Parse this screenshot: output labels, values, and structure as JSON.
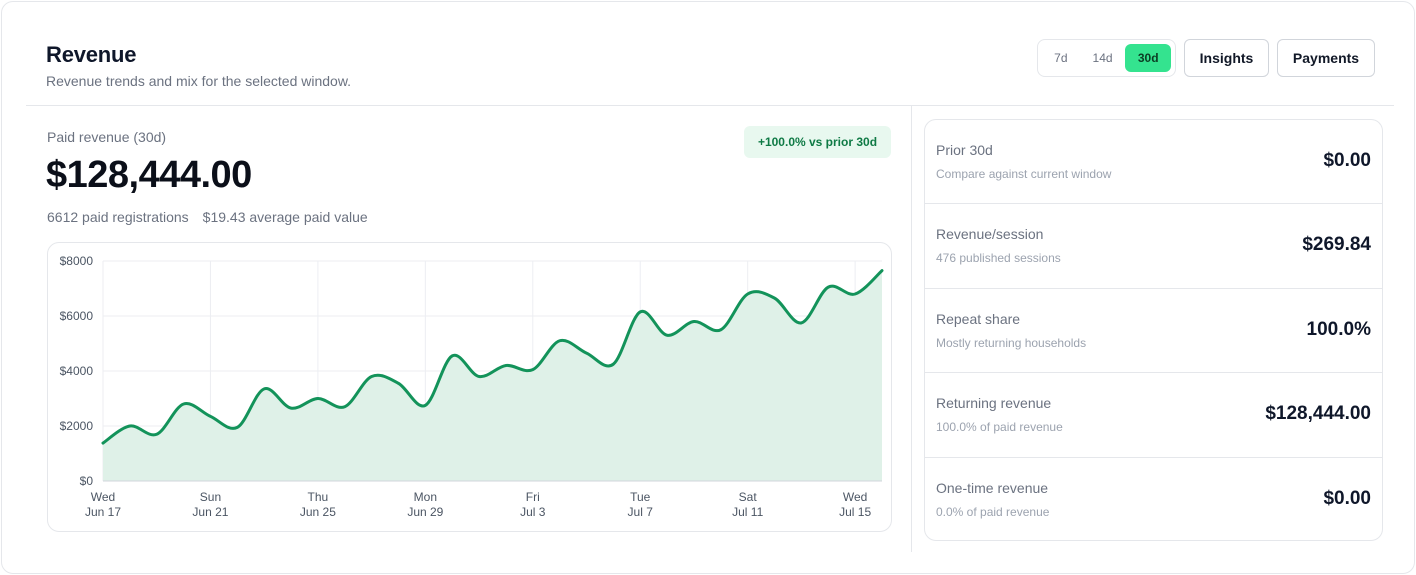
{
  "header": {
    "title": "Revenue",
    "subtitle": "Revenue trends and mix for the selected window."
  },
  "range": {
    "options": [
      "7d",
      "14d",
      "30d"
    ],
    "selected": "30d"
  },
  "actions": {
    "insights_label": "Insights",
    "payments_label": "Payments"
  },
  "summary": {
    "label": "Paid revenue (30d)",
    "value": "$128,444.00",
    "registrations": "6612 paid registrations",
    "average": "$19.43 average paid value",
    "delta": "+100.0% vs prior 30d"
  },
  "side_metrics": [
    {
      "label": "Prior 30d",
      "desc": "Compare against current window",
      "value": "$0.00"
    },
    {
      "label": "Revenue/session",
      "desc": "476 published sessions",
      "value": "$269.84"
    },
    {
      "label": "Repeat share",
      "desc": "Mostly returning households",
      "value": "100.0%"
    },
    {
      "label": "Returning revenue",
      "desc": "100.0% of paid revenue",
      "value": "$128,444.00"
    },
    {
      "label": "One-time revenue",
      "desc": "0.0% of paid revenue",
      "value": "$0.00"
    }
  ],
  "colors": {
    "accent": "#34e38f",
    "line": "#13935a",
    "fill": "#dff1e8",
    "grid": "#eceef2",
    "axis_text": "#4b5563"
  },
  "chart_data": {
    "type": "area",
    "title": "",
    "xlabel": "",
    "ylabel": "",
    "ylim": [
      0,
      8000
    ],
    "yticks": [
      0,
      2000,
      4000,
      6000,
      8000
    ],
    "ytick_labels": [
      "$0",
      "$2000",
      "$4000",
      "$6000",
      "$8000"
    ],
    "grid": true,
    "legend": "none",
    "xtick_labels": [
      [
        "Wed",
        "Jun 17"
      ],
      [
        "Sun",
        "Jun 21"
      ],
      [
        "Thu",
        "Jun 25"
      ],
      [
        "Mon",
        "Jun 29"
      ],
      [
        "Fri",
        "Jul 3"
      ],
      [
        "Tue",
        "Jul 7"
      ],
      [
        "Sat",
        "Jul 11"
      ],
      [
        "Wed",
        "Jul 15"
      ]
    ],
    "x": [
      "Jun 17",
      "Jun 18",
      "Jun 19",
      "Jun 20",
      "Jun 21",
      "Jun 22",
      "Jun 23",
      "Jun 24",
      "Jun 25",
      "Jun 26",
      "Jun 27",
      "Jun 28",
      "Jun 29",
      "Jun 30",
      "Jul 1",
      "Jul 2",
      "Jul 3",
      "Jul 4",
      "Jul 5",
      "Jul 6",
      "Jul 7",
      "Jul 8",
      "Jul 9",
      "Jul 10",
      "Jul 11",
      "Jul 12",
      "Jul 13",
      "Jul 14",
      "Jul 15",
      "Jul 16"
    ],
    "values": [
      1380,
      2000,
      1700,
      2800,
      2350,
      1950,
      3350,
      2650,
      3000,
      2700,
      3800,
      3550,
      2750,
      4550,
      3800,
      4200,
      4050,
      5100,
      4650,
      4250,
      6150,
      5300,
      5800,
      5500,
      6800,
      6650,
      5750,
      7050,
      6800,
      7650
    ]
  }
}
